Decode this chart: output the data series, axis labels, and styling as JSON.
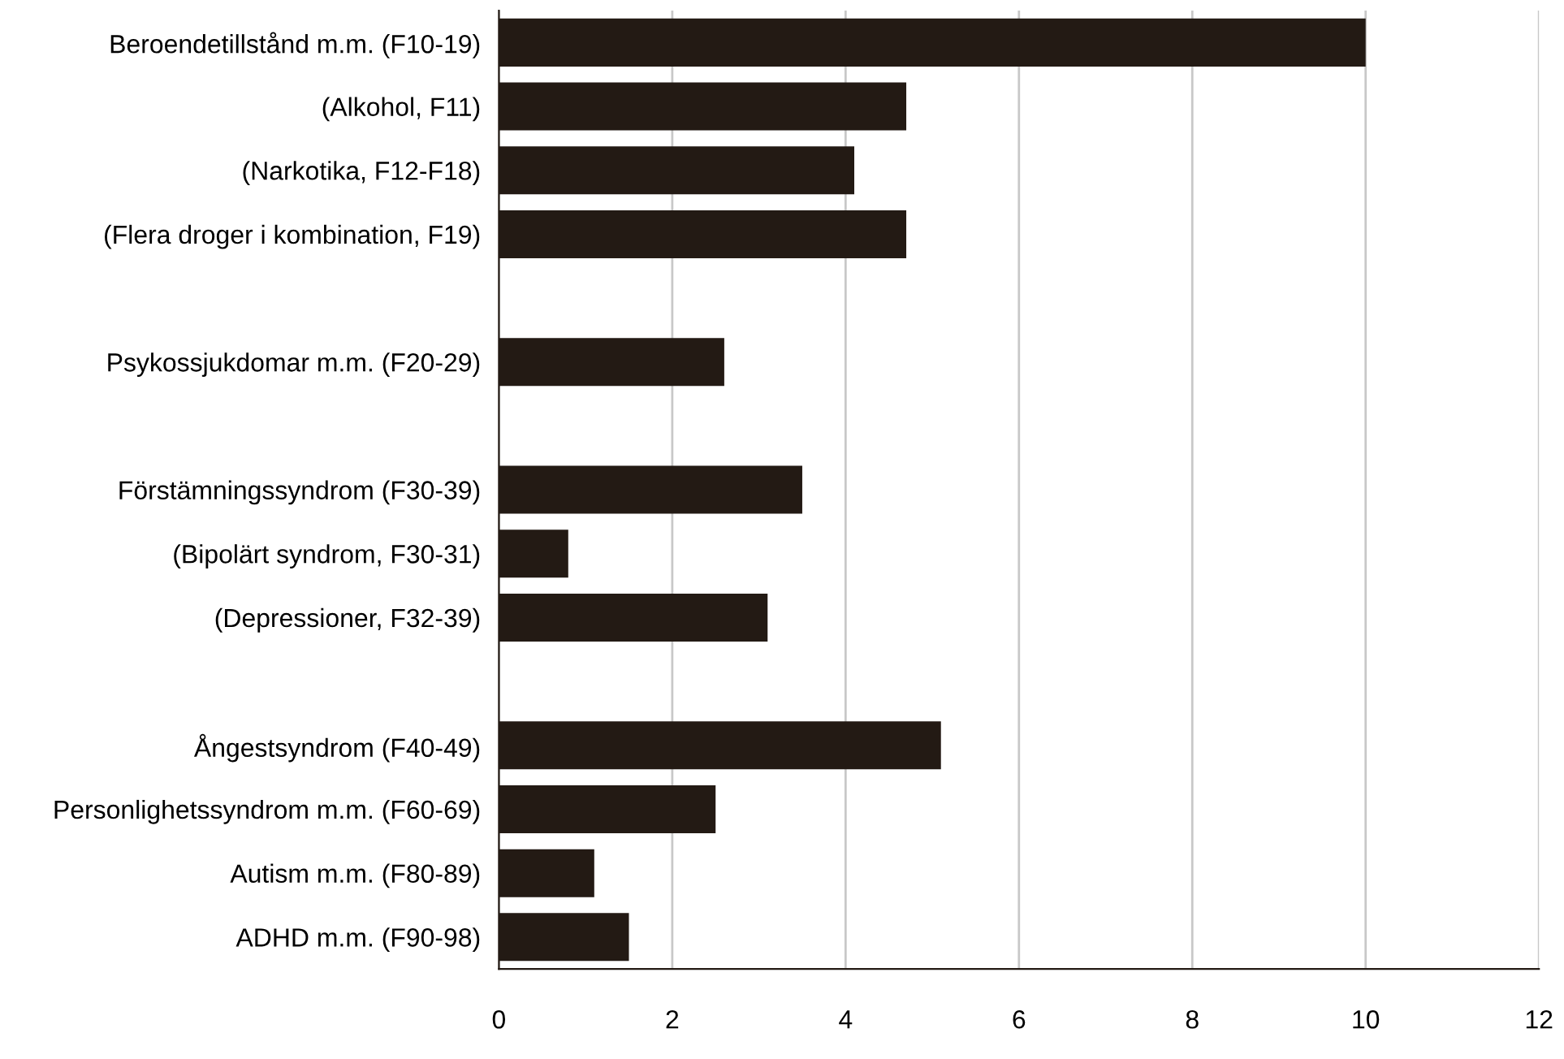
{
  "chart_data": {
    "type": "bar",
    "orientation": "horizontal",
    "categories": [
      "Beroendetillstånd m.m. (F10-19)",
      "(Alkohol, F11)",
      "(Narkotika, F12-F18)",
      "(Flera droger i kombination, F19)",
      null,
      "Psykossjukdomar m.m. (F20-29)",
      null,
      "Förstämningssyndrom (F30-39)",
      "(Bipolärt syndrom, F30-31)",
      "(Depressioner, F32-39)",
      null,
      "Ångestsyndrom (F40-49)",
      "Personlighetssyndrom m.m. (F60-69)",
      "Autism m.m. (F80-89)",
      "ADHD m.m. (F90-98)"
    ],
    "values": [
      10.0,
      4.7,
      4.1,
      4.7,
      null,
      2.6,
      null,
      3.5,
      0.8,
      3.1,
      null,
      5.1,
      2.5,
      1.1,
      1.5
    ],
    "color": "#231a14",
    "xlim": [
      0,
      12
    ],
    "xticks": [
      0,
      2,
      4,
      6,
      8,
      10,
      12
    ],
    "grid": "x",
    "legend": false
  }
}
